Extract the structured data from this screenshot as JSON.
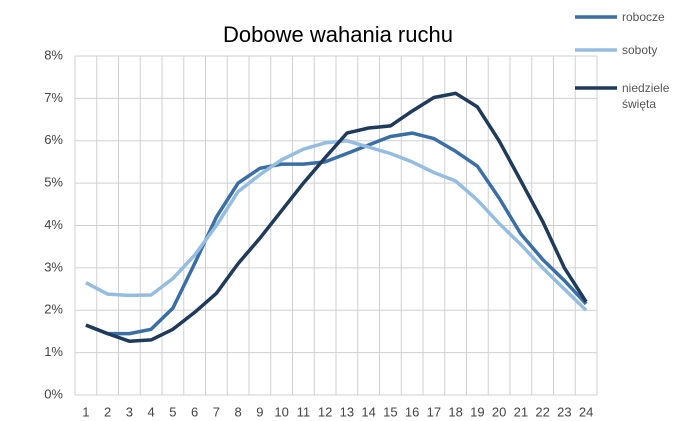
{
  "chart_data": {
    "type": "line",
    "title": "Dobowe wahania ruchu",
    "categories": [
      "1",
      "2",
      "3",
      "4",
      "5",
      "6",
      "7",
      "8",
      "9",
      "10",
      "11",
      "12",
      "13",
      "14",
      "15",
      "16",
      "17",
      "18",
      "19",
      "20",
      "21",
      "22",
      "23",
      "24"
    ],
    "series": [
      {
        "name": "robocze",
        "color": "#3a6ea5",
        "values": [
          1.65,
          1.45,
          1.45,
          1.55,
          2.05,
          3.1,
          4.2,
          5.0,
          5.35,
          5.45,
          5.45,
          5.5,
          5.7,
          5.9,
          6.1,
          6.18,
          6.05,
          5.75,
          5.4,
          4.65,
          3.8,
          3.2,
          2.7,
          2.15
        ]
      },
      {
        "name": "soboty",
        "color": "#95bde0",
        "values": [
          2.65,
          2.38,
          2.35,
          2.36,
          2.75,
          3.3,
          4.0,
          4.8,
          5.2,
          5.55,
          5.8,
          5.95,
          6.0,
          5.85,
          5.7,
          5.5,
          5.25,
          5.05,
          4.6,
          4.05,
          3.55,
          3.0,
          2.5,
          2.0
        ]
      },
      {
        "name": "niedziele święta",
        "color": "#1f3a5a",
        "values": [
          1.65,
          1.45,
          1.27,
          1.3,
          1.55,
          1.95,
          2.4,
          3.1,
          3.7,
          4.35,
          5.0,
          5.6,
          6.18,
          6.3,
          6.35,
          6.7,
          7.02,
          7.12,
          6.8,
          6.0,
          5.05,
          4.1,
          3.0,
          2.2
        ]
      }
    ],
    "ylim": [
      0,
      8
    ],
    "yticks": [
      {
        "value": 0,
        "label": "0%"
      },
      {
        "value": 1,
        "label": "1%"
      },
      {
        "value": 2,
        "label": "2%"
      },
      {
        "value": 3,
        "label": "3%"
      },
      {
        "value": 4,
        "label": "4%"
      },
      {
        "value": 5,
        "label": "5%"
      },
      {
        "value": 6,
        "label": "6%"
      },
      {
        "value": 7,
        "label": "7%"
      },
      {
        "value": 8,
        "label": "8%"
      }
    ],
    "grid": true
  }
}
